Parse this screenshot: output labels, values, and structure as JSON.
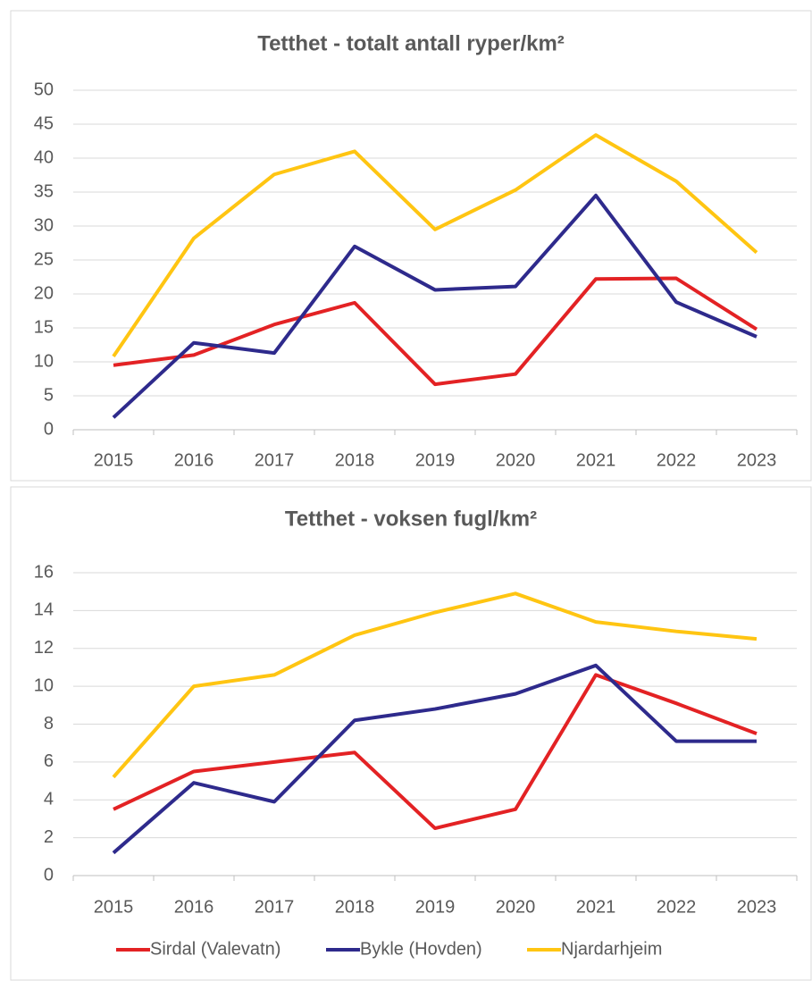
{
  "chart_data": [
    {
      "type": "line",
      "title": "Tetthet - totalt antall ryper/km²",
      "categories": [
        "2015",
        "2016",
        "2017",
        "2018",
        "2019",
        "2020",
        "2021",
        "2022",
        "2023"
      ],
      "series": [
        {
          "color": "#e32224",
          "values": [
            9.5,
            11,
            15.5,
            18.7,
            6.7,
            8.2,
            22.2,
            22.3,
            14.8
          ]
        },
        {
          "color": "#2e2a8c",
          "values": [
            1.8,
            12.8,
            11.3,
            27,
            20.6,
            21.1,
            34.5,
            18.8,
            13.7
          ]
        },
        {
          "color": "#ffc512",
          "values": [
            10.8,
            28.2,
            37.6,
            41,
            29.5,
            35.3,
            43.4,
            36.6,
            26.1
          ]
        }
      ],
      "ylim": [
        0,
        50
      ],
      "yticks": [
        0,
        5,
        10,
        15,
        20,
        25,
        30,
        35,
        40,
        45,
        50
      ],
      "grid": true
    },
    {
      "type": "line",
      "title": "Tetthet - voksen fugl/km²",
      "categories": [
        "2015",
        "2016",
        "2017",
        "2018",
        "2019",
        "2020",
        "2021",
        "2022",
        "2023"
      ],
      "series": [
        {
          "name": "Sirdal (Valevatn)",
          "color": "#e32224",
          "values": [
            3.5,
            5.5,
            6.0,
            6.5,
            2.5,
            3.5,
            10.6,
            9.1,
            7.5
          ]
        },
        {
          "name": "Bykle (Hovden)",
          "color": "#2e2a8c",
          "values": [
            1.2,
            4.9,
            3.9,
            8.2,
            8.8,
            9.6,
            11.1,
            7.1,
            7.1
          ]
        },
        {
          "name": "Njardarhjeim",
          "color": "#ffc512",
          "values": [
            5.2,
            10.0,
            10.6,
            12.7,
            13.9,
            14.9,
            13.4,
            12.9,
            12.5
          ]
        }
      ],
      "ylim": [
        0,
        16
      ],
      "yticks": [
        0,
        2,
        4,
        6,
        8,
        10,
        12,
        14,
        16
      ],
      "grid": true,
      "legend": "bottom"
    }
  ]
}
